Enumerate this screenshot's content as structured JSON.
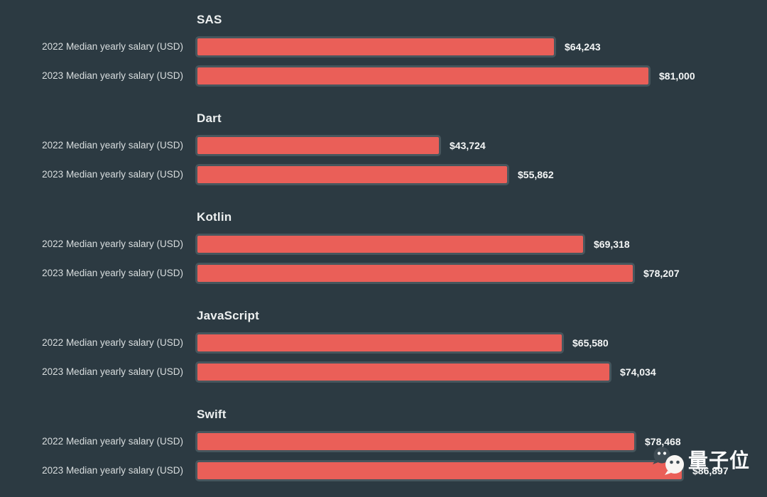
{
  "chart_data": {
    "type": "bar",
    "orientation": "horizontal",
    "title": "",
    "series_labels": [
      "2022 Median yearly salary (USD)",
      "2023 Median yearly salary (USD)"
    ],
    "groups": [
      {
        "name": "SAS",
        "values": [
          64243,
          81000
        ],
        "value_labels": [
          "$64,243",
          "$81,000"
        ]
      },
      {
        "name": "Dart",
        "values": [
          43724,
          55862
        ],
        "value_labels": [
          "$43,724",
          "$55,862"
        ]
      },
      {
        "name": "Kotlin",
        "values": [
          69318,
          78207
        ],
        "value_labels": [
          "$69,318",
          "$78,207"
        ]
      },
      {
        "name": "JavaScript",
        "values": [
          65580,
          74034
        ],
        "value_labels": [
          "$65,580",
          "$74,034"
        ]
      },
      {
        "name": "Swift",
        "values": [
          78468,
          86897
        ],
        "value_labels": [
          "$78,468",
          "$86,897"
        ]
      }
    ],
    "xlim": [
      0,
      86897
    ],
    "grid": false,
    "legend_position": "none"
  },
  "watermark": {
    "text": "量子位",
    "icon": "wechat-bubbles-icon"
  },
  "colors": {
    "background": "#2c3a42",
    "bar_fill": "#ea5f58",
    "bar_border": "#47565d",
    "row_label_text": "#d9dedf",
    "value_text": "#f4f6f6",
    "group_title_text": "#edf0f0",
    "watermark_text": "#fbfcfc"
  }
}
